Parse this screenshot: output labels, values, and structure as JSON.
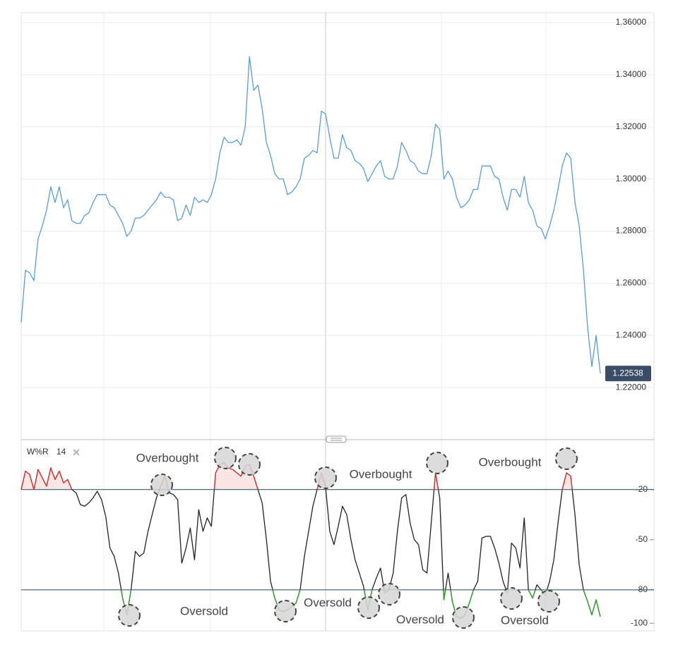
{
  "chart_data": [
    {
      "type": "line",
      "color": "#5b9bd5",
      "values": [
        1.245,
        1.265,
        1.264,
        1.261,
        1.277,
        1.282,
        1.288,
        1.297,
        1.291,
        1.297,
        1.289,
        1.292,
        1.284,
        1.283,
        1.283,
        1.286,
        1.287,
        1.291,
        1.294,
        1.294,
        1.294,
        1.29,
        1.289,
        1.286,
        1.283,
        1.278,
        1.28,
        1.285,
        1.285,
        1.286,
        1.288,
        1.29,
        1.292,
        1.295,
        1.293,
        1.293,
        1.292,
        1.284,
        1.285,
        1.29,
        1.286,
        1.293,
        1.291,
        1.292,
        1.291,
        1.294,
        1.3,
        1.31,
        1.316,
        1.314,
        1.314,
        1.315,
        1.313,
        1.32,
        1.347,
        1.334,
        1.336,
        1.327,
        1.314,
        1.309,
        1.302,
        1.3,
        1.3,
        1.294,
        1.295,
        1.297,
        1.3,
        1.308,
        1.309,
        1.311,
        1.31,
        1.326,
        1.325,
        1.316,
        1.308,
        1.308,
        1.317,
        1.312,
        1.311,
        1.307,
        1.306,
        1.304,
        1.299,
        1.302,
        1.305,
        1.307,
        1.301,
        1.3,
        1.3,
        1.305,
        1.314,
        1.311,
        1.307,
        1.306,
        1.303,
        1.302,
        1.302,
        1.309,
        1.321,
        1.319,
        1.3,
        1.303,
        1.3,
        1.293,
        1.289,
        1.29,
        1.292,
        1.296,
        1.296,
        1.305,
        1.305,
        1.305,
        1.301,
        1.3,
        1.293,
        1.288,
        1.296,
        1.296,
        1.293,
        1.301,
        1.291,
        1.288,
        1.282,
        1.281,
        1.277,
        1.282,
        1.288,
        1.296,
        1.305,
        1.31,
        1.308,
        1.291,
        1.282,
        1.265,
        1.243,
        1.228,
        1.24,
        1.22538
      ],
      "ylim": [
        1.2008,
        1.3638
      ],
      "yticks": [
        {
          "value": 1.22,
          "label": "1.22000"
        },
        {
          "value": 1.24,
          "label": "1.24000"
        },
        {
          "value": 1.26,
          "label": "1.26000"
        },
        {
          "value": 1.28,
          "label": "1.28000"
        },
        {
          "value": 1.3,
          "label": "1.30000"
        },
        {
          "value": 1.32,
          "label": "1.32000"
        },
        {
          "value": 1.34,
          "label": "1.34000"
        },
        {
          "value": 1.36,
          "label": "1.36000"
        }
      ]
    },
    {
      "type": "line",
      "name": "W%R",
      "period": 14,
      "color": "#222222",
      "overbought_color": "#e03030",
      "oversold_color": "#2ca02c",
      "level_color": "#3d5a6e",
      "values": [
        -20,
        -9,
        -11,
        -20,
        -8,
        -13,
        -18,
        -7,
        -14,
        -9,
        -16,
        -14,
        -20,
        -22,
        -29,
        -30,
        -28,
        -25,
        -21,
        -26,
        -36,
        -55,
        -60,
        -70,
        -85,
        -95,
        -80,
        -57,
        -60,
        -58,
        -45,
        -35,
        -25,
        -18,
        -12,
        -22,
        -23,
        -26,
        -64,
        -55,
        -43,
        -62,
        -32,
        -45,
        -37,
        -42,
        -10,
        -5,
        -4,
        -7,
        -8,
        -10,
        -12,
        -6,
        -5,
        -12,
        -20,
        -28,
        -50,
        -75,
        -85,
        -92,
        -93,
        -92,
        -90,
        -88,
        -80,
        -60,
        -45,
        -30,
        -20,
        -10,
        -18,
        -45,
        -53,
        -42,
        -30,
        -35,
        -50,
        -62,
        -70,
        -78,
        -92,
        -80,
        -73,
        -67,
        -82,
        -80,
        -70,
        -45,
        -25,
        -23,
        -40,
        -50,
        -53,
        -68,
        -70,
        -40,
        -10,
        -25,
        -86,
        -70,
        -87,
        -96,
        -97,
        -95,
        -88,
        -80,
        -75,
        -49,
        -48,
        -48,
        -55,
        -64,
        -75,
        -82,
        -52,
        -55,
        -67,
        -37,
        -80,
        -85,
        -77,
        -80,
        -83,
        -75,
        -62,
        -40,
        -20,
        -10,
        -12,
        -35,
        -65,
        -80,
        -87,
        -95,
        -86,
        -96
      ],
      "ylim": [
        -105,
        9
      ],
      "yticks": [
        -20,
        -50,
        -80,
        -100
      ],
      "levels": [
        -20,
        -80
      ],
      "annotations": [
        "Overbought",
        "Overbought",
        "Overbought",
        "Oversold",
        "Oversold",
        "Oversold",
        "Oversold"
      ]
    }
  ]
}
